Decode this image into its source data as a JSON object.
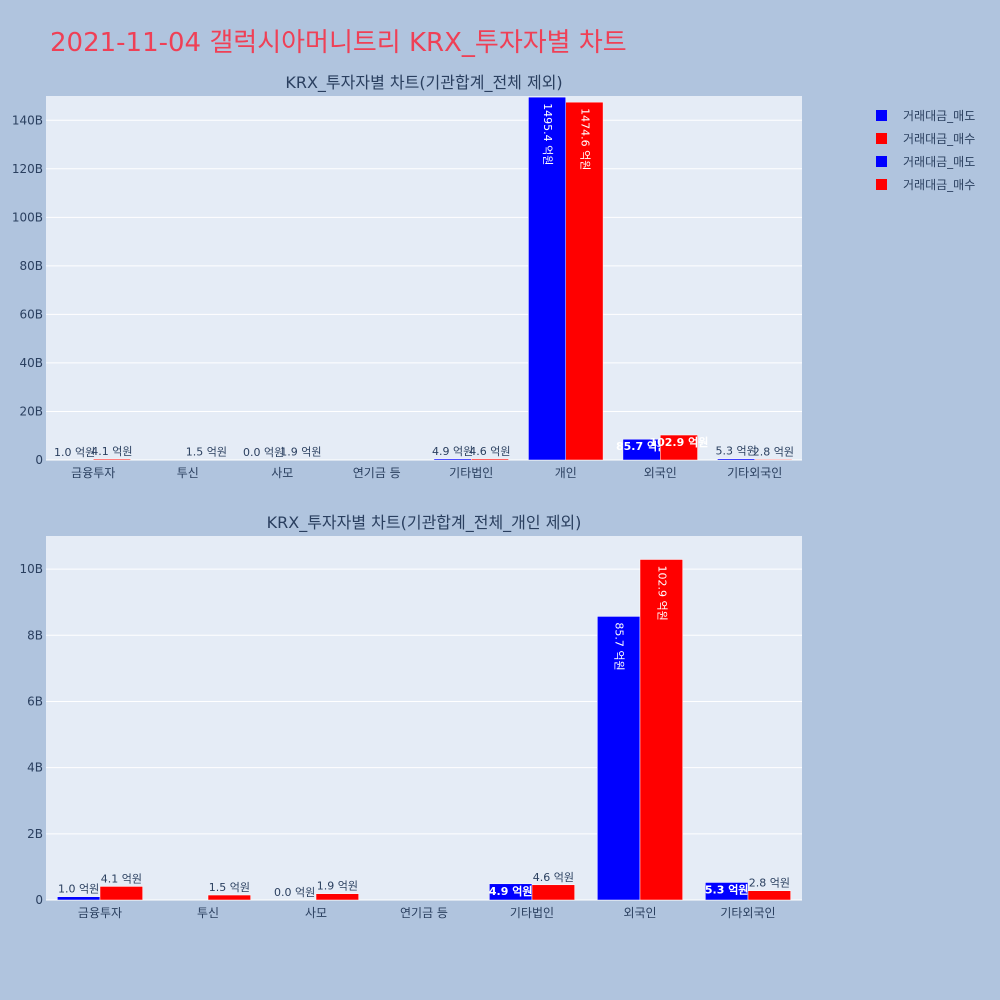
{
  "page": {
    "title": "2021-11-04 갤럭시아머니트리 KRX_투자자별 차트",
    "title_color": "#ef4056",
    "background": "#b0c4de"
  },
  "legend": [
    {
      "label": "거래대금_매도",
      "color": "#0000ff"
    },
    {
      "label": "거래대금_매수",
      "color": "#ff0000"
    },
    {
      "label": "거래대금_매도",
      "color": "#0000ff"
    },
    {
      "label": "거래대금_매수",
      "color": "#ff0000"
    }
  ],
  "chart_data": [
    {
      "type": "bar",
      "title": "KRX_투자자별 차트(기관합계_전체 제외)",
      "categories": [
        "금융투자",
        "투신",
        "사모",
        "연기금 등",
        "기타법인",
        "개인",
        "외국인",
        "기타외국인"
      ],
      "ylim": [
        0,
        150000000000
      ],
      "yticks": [
        0,
        20000000000,
        40000000000,
        60000000000,
        80000000000,
        100000000000,
        120000000000,
        140000000000
      ],
      "ytick_labels": [
        "0",
        "20B",
        "40B",
        "60B",
        "80B",
        "100B",
        "120B",
        "140B"
      ],
      "grid": true,
      "series": [
        {
          "name": "거래대금_매도",
          "color": "#0000ff",
          "values": [
            100000000,
            0,
            0,
            0,
            490000000,
            149540000000,
            8570000000,
            530000000
          ],
          "labels": [
            "1.0 억원",
            "",
            "0.0 억원",
            "",
            "4.9 억원",
            "1495.4 억원",
            "85.7 억원",
            "5.3 억원"
          ]
        },
        {
          "name": "거래대금_매수",
          "color": "#ff0000",
          "values": [
            410000000,
            150000000,
            190000000,
            0,
            460000000,
            147460000000,
            10290000000,
            280000000
          ],
          "labels": [
            "4.1 억원",
            "1.5 억원",
            "1.9 억원",
            "",
            "4.6 억원",
            "1474.6 억원",
            "102.9 억원",
            "2.8 억원"
          ]
        }
      ]
    },
    {
      "type": "bar",
      "title": "KRX_투자자별 차트(기관합계_전체_개인 제외)",
      "categories": [
        "금융투자",
        "투신",
        "사모",
        "연기금 등",
        "기타법인",
        "외국인",
        "기타외국인"
      ],
      "ylim": [
        0,
        11000000000
      ],
      "yticks": [
        0,
        2000000000,
        4000000000,
        6000000000,
        8000000000,
        10000000000
      ],
      "ytick_labels": [
        "0",
        "2B",
        "4B",
        "6B",
        "8B",
        "10B"
      ],
      "grid": true,
      "series": [
        {
          "name": "거래대금_매도",
          "color": "#0000ff",
          "values": [
            100000000,
            0,
            0,
            0,
            490000000,
            8570000000,
            530000000
          ],
          "labels": [
            "1.0 억원",
            "",
            "0.0 억원",
            "",
            "4.9 억원",
            "85.7 억원",
            "5.3 억원"
          ]
        },
        {
          "name": "거래대금_매수",
          "color": "#ff0000",
          "values": [
            410000000,
            150000000,
            190000000,
            0,
            460000000,
            10290000000,
            280000000
          ],
          "labels": [
            "4.1 억원",
            "1.5 억원",
            "1.9 억원",
            "",
            "4.6 억원",
            "102.9 억원",
            "2.8 억원"
          ]
        }
      ]
    }
  ]
}
